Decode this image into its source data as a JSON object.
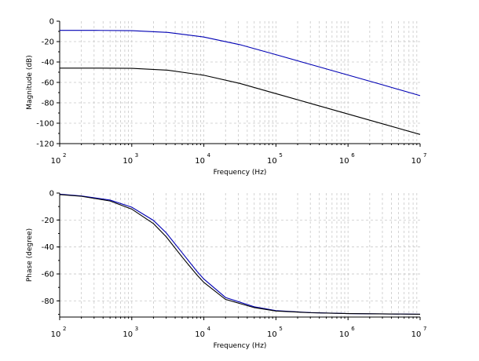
{
  "chart_data": [
    {
      "type": "line",
      "title": "",
      "xlabel": "Frequency (Hz)",
      "ylabel": "Magnitude (dB)",
      "xscale": "log",
      "xlim": [
        100,
        10000000
      ],
      "ylim": [
        -120,
        0
      ],
      "x_tick_base": "10",
      "x_tick_exponents": [
        "2",
        "3",
        "4",
        "5",
        "6",
        "7"
      ],
      "y_ticks": [
        0,
        -20,
        -40,
        -60,
        -80,
        -100,
        -120
      ],
      "y_tick_labels": [
        "0",
        "-20",
        "-40",
        "-60",
        "-80",
        "-100",
        "-120"
      ],
      "grid": true,
      "x": [
        100,
        316,
        1000,
        3162,
        10000,
        31623,
        100000,
        316228,
        1000000,
        3162278,
        10000000
      ],
      "series": [
        {
          "color": "#0000b4",
          "values": [
            -9,
            -9,
            -9.3,
            -11,
            -15.5,
            -23,
            -32.8,
            -42.8,
            -52.8,
            -62.8,
            -73
          ]
        },
        {
          "color": "#000000",
          "values": [
            -46,
            -46,
            -46.2,
            -48,
            -53,
            -61,
            -71,
            -81,
            -91,
            -101,
            -111
          ]
        }
      ]
    },
    {
      "type": "line",
      "title": "",
      "xlabel": "Frequency (Hz)",
      "ylabel": "Phase (degree)",
      "xscale": "log",
      "xlim": [
        100,
        10000000
      ],
      "ylim": [
        -92,
        0
      ],
      "x_tick_base": "10",
      "x_tick_exponents": [
        "2",
        "3",
        "4",
        "5",
        "6",
        "7"
      ],
      "y_ticks": [
        0,
        -20,
        -40,
        -60,
        -80
      ],
      "y_tick_labels": [
        "0",
        "-20",
        "-40",
        "-60",
        "-80"
      ],
      "grid": true,
      "x": [
        100,
        200,
        500,
        1000,
        2000,
        3000,
        5000,
        8000,
        10000,
        20000,
        50000,
        100000,
        300000,
        1000000,
        10000000
      ],
      "series": [
        {
          "color": "#0000b4",
          "values": [
            -0.8,
            -2.1,
            -5.2,
            -10.5,
            -20.3,
            -29.5,
            -44.3,
            -58,
            -63.8,
            -77.5,
            -84.4,
            -87.2,
            -88.7,
            -89.4,
            -89.9
          ]
        },
        {
          "color": "#000000",
          "values": [
            -1.1,
            -2.4,
            -5.9,
            -11.9,
            -22.7,
            -32.4,
            -47.5,
            -60.7,
            -66.3,
            -78.9,
            -85,
            -87.5,
            -88.8,
            -89.4,
            -89.9
          ]
        }
      ]
    }
  ]
}
